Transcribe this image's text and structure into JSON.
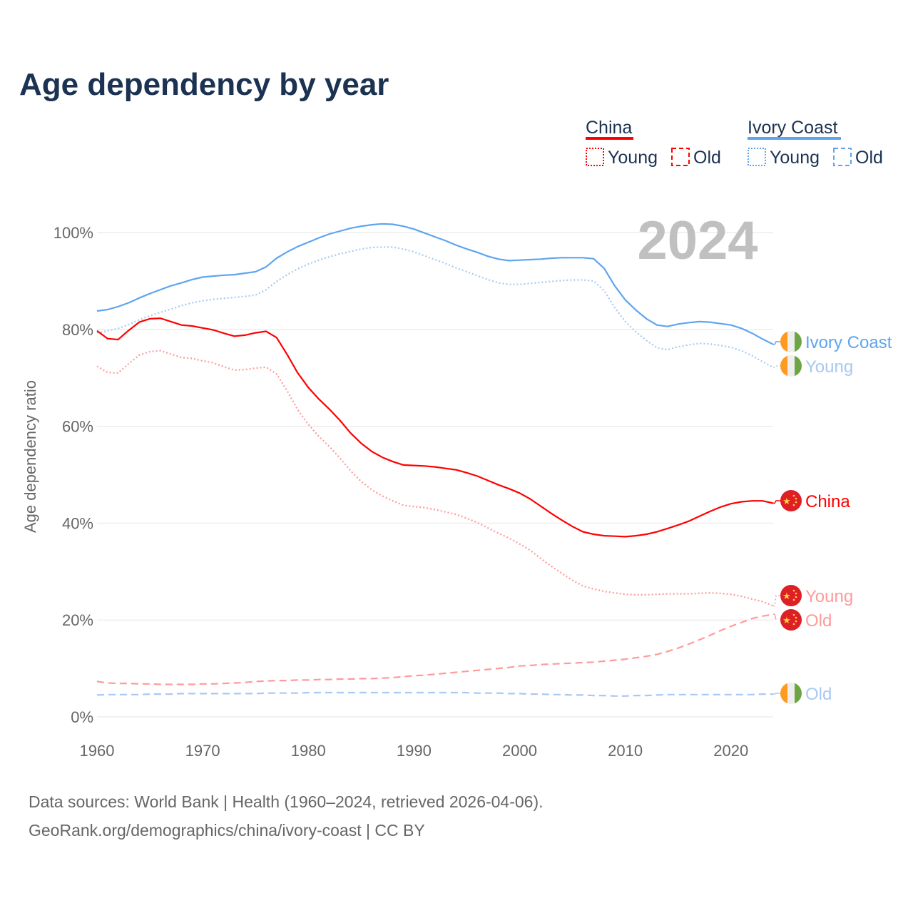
{
  "chart_data": {
    "type": "line",
    "title": "Age dependency by year",
    "ylabel": "Age dependency ratio",
    "xlabel": "",
    "xlim": [
      1960,
      2024
    ],
    "ylim": [
      0,
      100
    ],
    "x_ticks": [
      "1960",
      "1970",
      "1980",
      "1990",
      "2000",
      "2010",
      "2020"
    ],
    "y_ticks": [
      "0%",
      "20%",
      "40%",
      "60%",
      "80%",
      "100%"
    ],
    "year_watermark": "2024",
    "grid": true,
    "legend": {
      "placement": "top-right",
      "groups": [
        {
          "name": "China",
          "color": "#ff0000",
          "items": [
            "Young",
            "Old"
          ]
        },
        {
          "name": "Ivory Coast",
          "color": "#5ea5ee",
          "items": [
            "Young",
            "Old"
          ]
        }
      ]
    },
    "x": [
      1960,
      1961,
      1962,
      1963,
      1964,
      1965,
      1966,
      1967,
      1968,
      1969,
      1970,
      1971,
      1972,
      1973,
      1974,
      1975,
      1976,
      1977,
      1978,
      1979,
      1980,
      1981,
      1982,
      1983,
      1984,
      1985,
      1986,
      1987,
      1988,
      1989,
      1990,
      1991,
      1992,
      1993,
      1994,
      1995,
      1996,
      1997,
      1998,
      1999,
      2000,
      2001,
      2002,
      2003,
      2004,
      2005,
      2006,
      2007,
      2008,
      2009,
      2010,
      2011,
      2012,
      2013,
      2014,
      2015,
      2016,
      2017,
      2018,
      2019,
      2020,
      2021,
      2022,
      2023,
      2024
    ],
    "series": [
      {
        "name": "Ivory Coast",
        "end_label": "Ivory Coast",
        "country": "Ivory Coast",
        "style": "solid",
        "color": "#5ea5ee",
        "values": [
          83.8,
          84.1,
          84.7,
          85.5,
          86.5,
          87.4,
          88.2,
          89.0,
          89.6,
          90.3,
          90.8,
          91.0,
          91.2,
          91.3,
          91.6,
          91.9,
          92.9,
          94.7,
          96.0,
          97.1,
          98.0,
          98.9,
          99.7,
          100.3,
          100.9,
          101.3,
          101.6,
          101.8,
          101.7,
          101.3,
          100.7,
          99.9,
          99.1,
          98.3,
          97.4,
          96.6,
          95.9,
          95.1,
          94.5,
          94.2,
          94.3,
          94.4,
          94.5,
          94.7,
          94.8,
          94.8,
          94.8,
          94.6,
          92.6,
          89.0,
          86.1,
          84.0,
          82.2,
          80.9,
          80.6,
          81.1,
          81.4,
          81.6,
          81.5,
          81.2,
          80.9,
          80.2,
          79.2,
          78.0,
          76.9
        ]
      },
      {
        "name": "Ivory Coast Young",
        "end_label": "Young",
        "country": "Ivory Coast",
        "style": "dotted",
        "color": "#a7c9f2",
        "values": [
          79.3,
          79.7,
          80.2,
          81.0,
          82.0,
          82.8,
          83.5,
          84.2,
          84.9,
          85.5,
          85.9,
          86.2,
          86.4,
          86.6,
          86.8,
          87.1,
          88.2,
          89.9,
          91.3,
          92.5,
          93.5,
          94.3,
          95.0,
          95.6,
          96.1,
          96.6,
          96.9,
          97.0,
          97.0,
          96.6,
          96.0,
          95.2,
          94.4,
          93.6,
          92.7,
          91.9,
          91.1,
          90.3,
          89.6,
          89.3,
          89.3,
          89.5,
          89.7,
          89.9,
          90.1,
          90.2,
          90.2,
          90.0,
          88.0,
          84.5,
          81.6,
          79.5,
          77.7,
          76.2,
          75.8,
          76.4,
          76.8,
          77.1,
          77.0,
          76.7,
          76.3,
          75.6,
          74.6,
          73.3,
          72.2
        ]
      },
      {
        "name": "China",
        "end_label": "China",
        "country": "China",
        "style": "solid",
        "color": "#ff0000",
        "values": [
          79.7,
          78.1,
          77.9,
          79.8,
          81.5,
          82.2,
          82.3,
          81.6,
          80.9,
          80.7,
          80.3,
          79.9,
          79.2,
          78.6,
          78.8,
          79.3,
          79.6,
          78.3,
          74.8,
          71.0,
          68.0,
          65.6,
          63.5,
          61.2,
          58.6,
          56.5,
          54.8,
          53.6,
          52.7,
          52.0,
          51.9,
          51.8,
          51.6,
          51.3,
          51.0,
          50.4,
          49.7,
          48.8,
          47.9,
          47.1,
          46.2,
          45.0,
          43.5,
          42.0,
          40.6,
          39.3,
          38.2,
          37.7,
          37.4,
          37.3,
          37.2,
          37.4,
          37.7,
          38.2,
          38.9,
          39.6,
          40.4,
          41.4,
          42.4,
          43.3,
          44.0,
          44.4,
          44.6,
          44.6,
          44.1
        ]
      },
      {
        "name": "China Young",
        "end_label": "Young",
        "country": "China",
        "style": "dotted",
        "color": "#ff9a9a",
        "values": [
          72.4,
          71.1,
          71.0,
          72.9,
          74.7,
          75.4,
          75.6,
          74.9,
          74.2,
          74.0,
          73.5,
          73.1,
          72.3,
          71.6,
          71.7,
          72.0,
          72.2,
          70.8,
          67.3,
          63.4,
          60.4,
          57.9,
          55.8,
          53.4,
          50.8,
          48.6,
          46.9,
          45.6,
          44.6,
          43.7,
          43.4,
          43.2,
          42.8,
          42.3,
          41.8,
          41.0,
          40.1,
          39.0,
          37.9,
          36.9,
          35.7,
          34.4,
          32.7,
          31.1,
          29.6,
          28.2,
          27.0,
          26.4,
          25.9,
          25.6,
          25.3,
          25.2,
          25.2,
          25.3,
          25.4,
          25.4,
          25.4,
          25.5,
          25.6,
          25.5,
          25.3,
          24.9,
          24.3,
          23.8,
          22.9
        ]
      },
      {
        "name": "China Old",
        "end_label": "Old",
        "country": "China",
        "style": "dashed",
        "color": "#ff9a9a",
        "values": [
          7.3,
          7.0,
          6.9,
          6.9,
          6.8,
          6.8,
          6.7,
          6.7,
          6.7,
          6.7,
          6.8,
          6.8,
          6.9,
          7.0,
          7.1,
          7.3,
          7.4,
          7.5,
          7.5,
          7.6,
          7.6,
          7.7,
          7.7,
          7.8,
          7.8,
          7.9,
          7.9,
          8.0,
          8.1,
          8.3,
          8.5,
          8.6,
          8.8,
          9.0,
          9.2,
          9.4,
          9.6,
          9.8,
          10.0,
          10.2,
          10.5,
          10.6,
          10.8,
          10.9,
          11.0,
          11.1,
          11.2,
          11.3,
          11.5,
          11.7,
          11.9,
          12.2,
          12.5,
          12.9,
          13.5,
          14.2,
          15.0,
          15.9,
          16.8,
          17.8,
          18.7,
          19.5,
          20.3,
          20.8,
          21.2
        ]
      },
      {
        "name": "Ivory Coast Old",
        "end_label": "Old",
        "country": "Ivory Coast",
        "style": "dashed",
        "color": "#a7c9f2",
        "values": [
          4.5,
          4.6,
          4.6,
          4.6,
          4.6,
          4.7,
          4.7,
          4.7,
          4.8,
          4.8,
          4.8,
          4.8,
          4.8,
          4.8,
          4.8,
          4.8,
          4.9,
          4.9,
          4.9,
          4.9,
          5.0,
          5.0,
          5.0,
          5.0,
          5.0,
          5.0,
          5.0,
          5.0,
          5.0,
          5.0,
          5.0,
          5.0,
          5.0,
          5.0,
          5.0,
          5.0,
          4.9,
          4.9,
          4.9,
          4.8,
          4.8,
          4.7,
          4.7,
          4.6,
          4.6,
          4.5,
          4.5,
          4.4,
          4.4,
          4.3,
          4.3,
          4.4,
          4.4,
          4.5,
          4.6,
          4.6,
          4.6,
          4.6,
          4.6,
          4.6,
          4.6,
          4.6,
          4.6,
          4.7,
          4.7
        ]
      }
    ]
  },
  "source": {
    "line1": "Data sources: World Bank | Health (1960–2024, retrieved 2026-04-06).",
    "line2": "GeoRank.org/demographics/china/ivory-coast | CC BY"
  }
}
